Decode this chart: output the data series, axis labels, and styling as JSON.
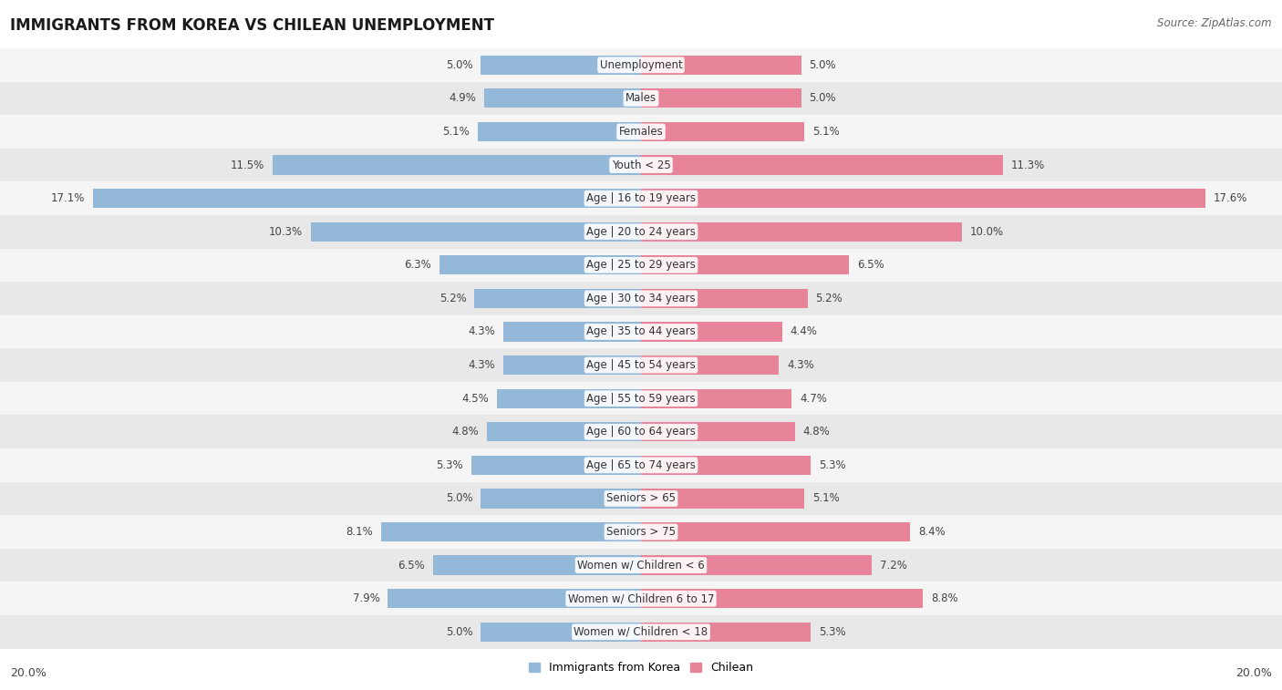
{
  "title": "IMMIGRANTS FROM KOREA VS CHILEAN UNEMPLOYMENT",
  "source": "Source: ZipAtlas.com",
  "categories": [
    "Unemployment",
    "Males",
    "Females",
    "Youth < 25",
    "Age | 16 to 19 years",
    "Age | 20 to 24 years",
    "Age | 25 to 29 years",
    "Age | 30 to 34 years",
    "Age | 35 to 44 years",
    "Age | 45 to 54 years",
    "Age | 55 to 59 years",
    "Age | 60 to 64 years",
    "Age | 65 to 74 years",
    "Seniors > 65",
    "Seniors > 75",
    "Women w/ Children < 6",
    "Women w/ Children 6 to 17",
    "Women w/ Children < 18"
  ],
  "korea_values": [
    5.0,
    4.9,
    5.1,
    11.5,
    17.1,
    10.3,
    6.3,
    5.2,
    4.3,
    4.3,
    4.5,
    4.8,
    5.3,
    5.0,
    8.1,
    6.5,
    7.9,
    5.0
  ],
  "chile_values": [
    5.0,
    5.0,
    5.1,
    11.3,
    17.6,
    10.0,
    6.5,
    5.2,
    4.4,
    4.3,
    4.7,
    4.8,
    5.3,
    5.1,
    8.4,
    7.2,
    8.8,
    5.3
  ],
  "korea_color": "#94b8d8",
  "chile_color": "#e8849a",
  "bar_height": 0.58,
  "max_value": 20.0,
  "fig_bg": "#ffffff",
  "row_colors": [
    "#f5f5f5",
    "#e8e8e8"
  ],
  "title_fontsize": 12,
  "source_fontsize": 8.5,
  "value_fontsize": 8.5,
  "category_fontsize": 8.5,
  "axis_label": "20.0%"
}
